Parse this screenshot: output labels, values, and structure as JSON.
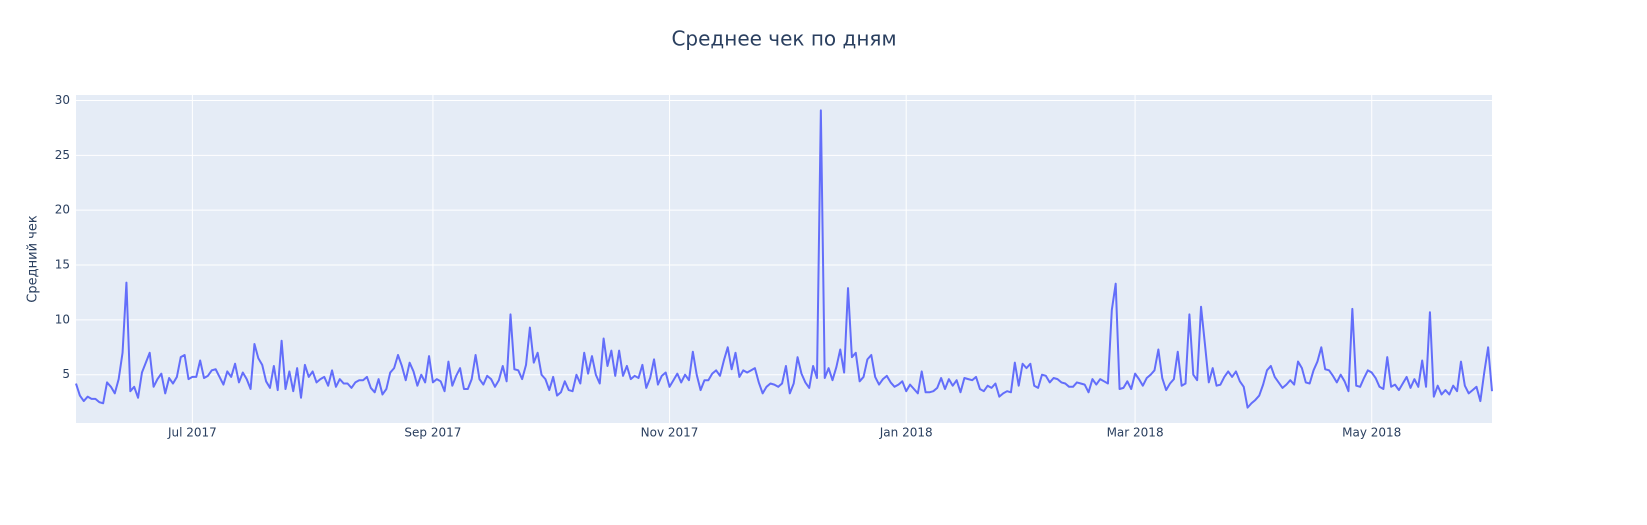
{
  "chart_data": {
    "type": "line",
    "title": "Среднее чек по дням",
    "y_label": "Средний чек",
    "color": "#636efa",
    "grid": true,
    "xlim": [
      "2017-06",
      "2018-06"
    ],
    "xticks": [
      {
        "value": "2017-07",
        "label": "Jul 2017"
      },
      {
        "value": "2017-09",
        "label": "Sep 2017"
      },
      {
        "value": "2017-11",
        "label": "Nov 2017"
      },
      {
        "value": "2018-01",
        "label": "Jan 2018"
      },
      {
        "value": "2018-03",
        "label": "Mar 2018"
      },
      {
        "value": "2018-05",
        "label": "May 2018"
      }
    ],
    "ylim": [
      0.6,
      30.5
    ],
    "yticks": [
      5,
      10,
      15,
      20,
      25,
      30
    ],
    "values": [
      4.2,
      3.1,
      2.6,
      3.0,
      2.8,
      2.8,
      2.5,
      2.4,
      4.3,
      3.9,
      3.3,
      4.6,
      7.0,
      13.4,
      3.5,
      3.9,
      2.9,
      5.2,
      6.1,
      7.0,
      3.9,
      4.6,
      5.1,
      3.3,
      4.7,
      4.2,
      4.8,
      6.6,
      6.8,
      4.6,
      4.8,
      4.8,
      6.3,
      4.7,
      4.9,
      5.4,
      5.5,
      4.8,
      4.1,
      5.3,
      4.8,
      6.0,
      4.3,
      5.2,
      4.6,
      3.7,
      7.8,
      6.5,
      5.9,
      4.4,
      3.8,
      5.8,
      3.6,
      8.1,
      3.7,
      5.3,
      3.5,
      5.6,
      2.9,
      5.9,
      4.8,
      5.3,
      4.3,
      4.6,
      4.8,
      4.0,
      5.4,
      3.9,
      4.6,
      4.2,
      4.2,
      3.8,
      4.3,
      4.5,
      4.5,
      4.8,
      3.8,
      3.4,
      4.6,
      3.2,
      3.7,
      5.2,
      5.6,
      6.8,
      5.8,
      4.5,
      6.1,
      5.3,
      4.0,
      5.0,
      4.3,
      6.7,
      4.3,
      4.6,
      4.4,
      3.5,
      6.2,
      4.0,
      4.9,
      5.6,
      3.7,
      3.7,
      4.6,
      6.8,
      4.6,
      4.1,
      4.9,
      4.6,
      3.9,
      4.5,
      5.8,
      4.4,
      10.5,
      5.5,
      5.4,
      4.6,
      5.9,
      9.3,
      6.1,
      7.0,
      5.0,
      4.6,
      3.6,
      4.8,
      3.1,
      3.4,
      4.4,
      3.6,
      3.5,
      5.0,
      4.2,
      7.0,
      5.1,
      6.7,
      5.0,
      4.2,
      8.3,
      5.8,
      7.2,
      4.9,
      7.2,
      4.9,
      5.8,
      4.6,
      4.9,
      4.7,
      5.9,
      3.8,
      4.7,
      6.4,
      4.1,
      4.9,
      5.2,
      3.9,
      4.5,
      5.1,
      4.3,
      5.0,
      4.5,
      7.1,
      5.0,
      3.6,
      4.5,
      4.5,
      5.1,
      5.4,
      4.9,
      6.3,
      7.5,
      5.5,
      7.0,
      4.8,
      5.4,
      5.2,
      5.4,
      5.6,
      4.3,
      3.3,
      3.9,
      4.2,
      4.1,
      3.9,
      4.2,
      5.8,
      3.3,
      4.2,
      6.6,
      5.1,
      4.3,
      3.8,
      5.8,
      4.7,
      29.1,
      4.7,
      5.6,
      4.5,
      5.7,
      7.3,
      5.2,
      12.9,
      6.6,
      7.0,
      4.4,
      4.8,
      6.4,
      6.8,
      4.8,
      4.1,
      4.6,
      4.9,
      4.3,
      3.9,
      4.1,
      4.4,
      3.5,
      4.1,
      3.7,
      3.3,
      5.3,
      3.4,
      3.4,
      3.5,
      3.8,
      4.7,
      3.7,
      4.6,
      4.0,
      4.5,
      3.4,
      4.7,
      4.6,
      4.5,
      4.8,
      3.7,
      3.5,
      4.0,
      3.8,
      4.2,
      3.0,
      3.3,
      3.5,
      3.4,
      6.1,
      4.0,
      6.0,
      5.6,
      6.0,
      4.0,
      3.8,
      5.0,
      4.9,
      4.3,
      4.7,
      4.6,
      4.3,
      4.2,
      3.9,
      3.9,
      4.3,
      4.2,
      4.1,
      3.4,
      4.6,
      4.1,
      4.6,
      4.4,
      4.2,
      10.9,
      13.3,
      3.7,
      3.8,
      4.4,
      3.7,
      5.1,
      4.6,
      4.0,
      4.7,
      5.0,
      5.4,
      7.3,
      4.7,
      3.6,
      4.2,
      4.6,
      7.1,
      4.0,
      4.2,
      10.5,
      5.0,
      4.5,
      11.2,
      7.8,
      4.3,
      5.6,
      4.0,
      4.1,
      4.8,
      5.3,
      4.8,
      5.3,
      4.4,
      3.9,
      2.0,
      2.4,
      2.7,
      3.1,
      4.1,
      5.4,
      5.8,
      4.8,
      4.3,
      3.8,
      4.1,
      4.5,
      4.1,
      6.2,
      5.6,
      4.3,
      4.2,
      5.4,
      6.2,
      7.5,
      5.5,
      5.4,
      4.9,
      4.3,
      5.0,
      4.4,
      3.5,
      11.0,
      4.0,
      3.9,
      4.7,
      5.4,
      5.2,
      4.7,
      3.9,
      3.7,
      6.6,
      3.9,
      4.1,
      3.6,
      4.2,
      4.8,
      3.8,
      4.6,
      3.9,
      6.3,
      3.9,
      10.7,
      3.0,
      4.0,
      3.2,
      3.6,
      3.2,
      4.0,
      3.5,
      6.2,
      4.0,
      3.3,
      3.6,
      3.9,
      2.6,
      5.2,
      7.5,
      3.5
    ]
  }
}
